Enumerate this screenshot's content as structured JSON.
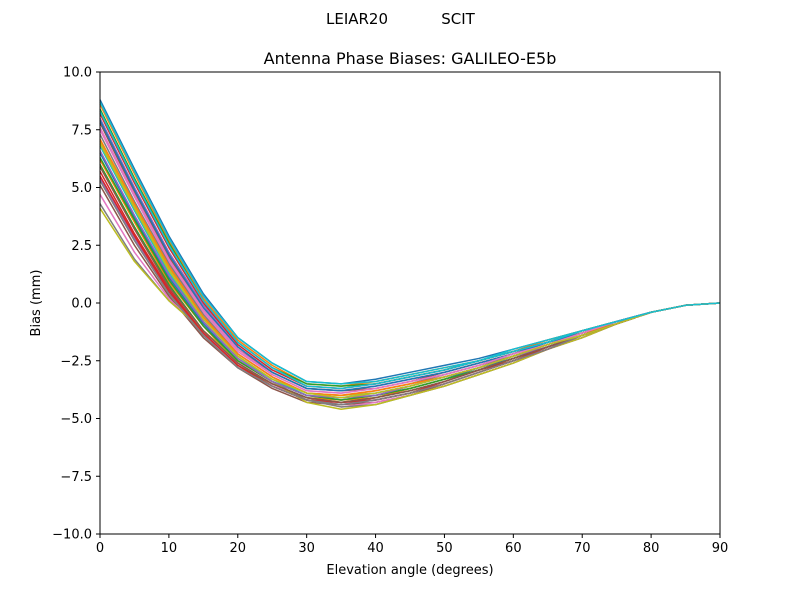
{
  "figure": {
    "suptitle_left": "LEIAR20",
    "suptitle_right": "SCIT"
  },
  "chart_data": {
    "type": "line",
    "title": "Antenna Phase Biases: GALILEO-E5b",
    "xlabel": "Elevation angle (degrees)",
    "ylabel": "Bias (mm)",
    "xlim": [
      0,
      90
    ],
    "ylim": [
      -10,
      10
    ],
    "xticks": [
      0,
      10,
      20,
      30,
      40,
      50,
      60,
      70,
      80,
      90
    ],
    "yticks": [
      -10.0,
      -7.5,
      -5.0,
      -2.5,
      0.0,
      2.5,
      5.0,
      7.5,
      10.0
    ],
    "ytick_labels": [
      "−10.0",
      "−7.5",
      "−5.0",
      "−2.5",
      "0.0",
      "2.5",
      "5.0",
      "7.5",
      "10.0"
    ],
    "xtick_labels": [
      "0",
      "10",
      "20",
      "30",
      "40",
      "50",
      "60",
      "70",
      "80",
      "90"
    ],
    "grid": false,
    "legend": "none",
    "colors": [
      "#1f77b4",
      "#ff7f0e",
      "#2ca02c",
      "#d62728",
      "#9467bd",
      "#8c564b",
      "#e377c2",
      "#7f7f7f",
      "#bcbd22",
      "#17becf"
    ],
    "x": [
      0,
      5,
      10,
      15,
      20,
      25,
      30,
      35,
      40,
      45,
      50,
      55,
      60,
      65,
      70,
      75,
      80,
      85,
      90
    ],
    "series": [
      {
        "values": [
          8.8,
          5.8,
          2.9,
          0.4,
          -1.5,
          -2.6,
          -3.4,
          -3.5,
          -3.3,
          -3.0,
          -2.7,
          -2.4,
          -2.0,
          -1.6,
          -1.2,
          -0.8,
          -0.4,
          -0.1,
          0.0
        ]
      },
      {
        "values": [
          8.6,
          5.6,
          2.7,
          0.2,
          -1.6,
          -2.7,
          -3.5,
          -3.6,
          -3.4,
          -3.1,
          -2.8,
          -2.5,
          -2.1,
          -1.6,
          -1.2,
          -0.8,
          -0.4,
          -0.1,
          0.0
        ]
      },
      {
        "values": [
          8.4,
          5.4,
          2.6,
          0.1,
          -1.7,
          -2.8,
          -3.5,
          -3.6,
          -3.5,
          -3.2,
          -2.9,
          -2.5,
          -2.1,
          -1.7,
          -1.2,
          -0.8,
          -0.4,
          -0.1,
          0.0
        ]
      },
      {
        "values": [
          8.2,
          5.2,
          2.4,
          0.0,
          -1.8,
          -2.9,
          -3.6,
          -3.7,
          -3.5,
          -3.2,
          -2.9,
          -2.5,
          -2.1,
          -1.7,
          -1.2,
          -0.8,
          -0.4,
          -0.1,
          0.0
        ]
      },
      {
        "values": [
          8.0,
          5.0,
          2.2,
          -0.1,
          -1.9,
          -3.0,
          -3.7,
          -3.8,
          -3.6,
          -3.3,
          -3.0,
          -2.6,
          -2.2,
          -1.7,
          -1.3,
          -0.8,
          -0.4,
          -0.1,
          0.0
        ]
      },
      {
        "values": [
          7.8,
          4.8,
          2.0,
          -0.3,
          -2.0,
          -3.0,
          -3.7,
          -3.8,
          -3.7,
          -3.4,
          -3.0,
          -2.6,
          -2.2,
          -1.7,
          -1.3,
          -0.8,
          -0.4,
          -0.1,
          0.0
        ]
      },
      {
        "values": [
          7.5,
          4.6,
          1.8,
          -0.4,
          -2.1,
          -3.1,
          -3.8,
          -3.9,
          -3.7,
          -3.4,
          -3.1,
          -2.7,
          -2.2,
          -1.8,
          -1.3,
          -0.8,
          -0.4,
          -0.1,
          0.0
        ]
      },
      {
        "values": [
          7.3,
          4.4,
          1.7,
          -0.5,
          -2.2,
          -3.2,
          -3.9,
          -4.0,
          -3.8,
          -3.5,
          -3.1,
          -2.7,
          -2.3,
          -1.8,
          -1.3,
          -0.9,
          -0.4,
          -0.1,
          0.0
        ]
      },
      {
        "values": [
          7.0,
          4.2,
          1.5,
          -0.6,
          -2.3,
          -3.3,
          -3.9,
          -4.0,
          -3.9,
          -3.6,
          -3.2,
          -2.8,
          -2.3,
          -1.8,
          -1.3,
          -0.9,
          -0.4,
          -0.1,
          0.0
        ]
      },
      {
        "values": [
          6.8,
          4.0,
          1.3,
          -0.8,
          -2.4,
          -3.3,
          -4.0,
          -4.1,
          -3.9,
          -3.6,
          -3.2,
          -2.8,
          -2.3,
          -1.8,
          -1.4,
          -0.9,
          -0.4,
          -0.1,
          0.0
        ]
      },
      {
        "values": [
          6.5,
          3.7,
          1.1,
          -0.9,
          -2.5,
          -3.4,
          -4.0,
          -4.2,
          -4.0,
          -3.7,
          -3.3,
          -2.8,
          -2.4,
          -1.9,
          -1.4,
          -0.9,
          -0.4,
          -0.1,
          0.0
        ]
      },
      {
        "values": [
          6.2,
          3.5,
          0.9,
          -1.0,
          -2.6,
          -3.5,
          -4.1,
          -4.2,
          -4.1,
          -3.7,
          -3.3,
          -2.9,
          -2.4,
          -1.9,
          -1.4,
          -0.9,
          -0.4,
          -0.1,
          0.0
        ]
      },
      {
        "values": [
          6.0,
          3.3,
          0.8,
          -1.2,
          -2.7,
          -3.5,
          -4.1,
          -4.3,
          -4.1,
          -3.8,
          -3.4,
          -2.9,
          -2.4,
          -1.9,
          -1.4,
          -0.9,
          -0.4,
          -0.1,
          0.0
        ]
      },
      {
        "values": [
          5.7,
          3.0,
          0.6,
          -1.3,
          -2.7,
          -3.6,
          -4.2,
          -4.3,
          -4.2,
          -3.9,
          -3.4,
          -2.9,
          -2.5,
          -1.9,
          -1.4,
          -0.9,
          -0.4,
          -0.1,
          0.0
        ]
      },
      {
        "values": [
          5.4,
          2.8,
          0.5,
          -1.4,
          -2.8,
          -3.6,
          -4.2,
          -4.4,
          -4.2,
          -3.9,
          -3.5,
          -3.0,
          -2.5,
          -2.0,
          -1.4,
          -0.9,
          -0.4,
          -0.1,
          0.0
        ]
      },
      {
        "values": [
          5.1,
          2.5,
          0.3,
          -1.5,
          -2.8,
          -3.7,
          -4.3,
          -4.4,
          -4.3,
          -4.0,
          -3.5,
          -3.0,
          -2.5,
          -2.0,
          -1.5,
          -0.9,
          -0.4,
          -0.1,
          0.0
        ]
      },
      {
        "values": [
          4.7,
          2.2,
          0.2,
          -1.3,
          -2.6,
          -3.5,
          -4.2,
          -4.5,
          -4.3,
          -4.0,
          -3.6,
          -3.1,
          -2.6,
          -2.0,
          -1.5,
          -0.9,
          -0.4,
          -0.1,
          0.0
        ]
      },
      {
        "values": [
          4.3,
          1.9,
          0.1,
          -1.2,
          -2.5,
          -3.4,
          -4.2,
          -4.5,
          -4.4,
          -4.0,
          -3.6,
          -3.1,
          -2.6,
          -2.0,
          -1.5,
          -0.9,
          -0.4,
          -0.1,
          0.0
        ]
      },
      {
        "values": [
          4.1,
          1.8,
          0.1,
          -1.2,
          -2.5,
          -3.4,
          -4.3,
          -4.6,
          -4.4,
          -4.0,
          -3.6,
          -3.1,
          -2.6,
          -2.0,
          -1.5,
          -0.9,
          -0.4,
          -0.1,
          0.0
        ]
      },
      {
        "values": [
          8.7,
          5.7,
          2.8,
          0.3,
          -1.5,
          -2.6,
          -3.4,
          -3.5,
          -3.4,
          -3.1,
          -2.8,
          -2.5,
          -2.0,
          -1.6,
          -1.2,
          -0.8,
          -0.4,
          -0.1,
          0.0
        ]
      },
      {
        "values": [
          7.9,
          4.9,
          2.1,
          -0.2,
          -1.9,
          -3.0,
          -3.7,
          -3.8,
          -3.6,
          -3.3,
          -3.0,
          -2.6,
          -2.2,
          -1.7,
          -1.3,
          -0.8,
          -0.4,
          -0.1,
          0.0
        ]
      },
      {
        "values": [
          7.1,
          4.3,
          1.6,
          -0.6,
          -2.2,
          -3.2,
          -3.9,
          -4.0,
          -3.8,
          -3.5,
          -3.2,
          -2.8,
          -2.3,
          -1.8,
          -1.3,
          -0.9,
          -0.4,
          -0.1,
          0.0
        ]
      },
      {
        "values": [
          6.3,
          3.6,
          1.0,
          -1.0,
          -2.5,
          -3.4,
          -4.0,
          -4.2,
          -4.0,
          -3.7,
          -3.3,
          -2.9,
          -2.4,
          -1.9,
          -1.4,
          -0.9,
          -0.4,
          -0.1,
          0.0
        ]
      },
      {
        "values": [
          5.5,
          2.9,
          0.5,
          -1.3,
          -2.7,
          -3.6,
          -4.2,
          -4.3,
          -4.2,
          -3.9,
          -3.5,
          -3.0,
          -2.5,
          -2.0,
          -1.4,
          -0.9,
          -0.4,
          -0.1,
          0.0
        ]
      },
      {
        "values": [
          6.6,
          3.8,
          1.2,
          -0.8,
          -2.4,
          -3.4,
          -4.0,
          -4.1,
          -4.0,
          -3.6,
          -3.2,
          -2.8,
          -2.3,
          -1.9,
          -1.4,
          -0.9,
          -0.4,
          -0.1,
          0.0
        ]
      },
      {
        "values": [
          5.9,
          3.2,
          0.7,
          -1.2,
          -2.6,
          -3.5,
          -4.1,
          -4.3,
          -4.1,
          -3.8,
          -3.4,
          -2.9,
          -2.4,
          -1.9,
          -1.4,
          -0.9,
          -0.4,
          -0.1,
          0.0
        ]
      },
      {
        "values": [
          7.6,
          4.7,
          1.9,
          -0.3,
          -2.0,
          -3.1,
          -3.8,
          -3.9,
          -3.7,
          -3.4,
          -3.1,
          -2.7,
          -2.2,
          -1.8,
          -1.3,
          -0.8,
          -0.4,
          -0.1,
          0.0
        ]
      },
      {
        "values": [
          5.3,
          2.7,
          0.4,
          -1.4,
          -2.8,
          -3.6,
          -4.2,
          -4.4,
          -4.2,
          -3.9,
          -3.5,
          -3.0,
          -2.5,
          -2.0,
          -1.4,
          -0.9,
          -0.4,
          -0.1,
          0.0
        ]
      },
      {
        "values": [
          6.9,
          4.1,
          1.4,
          -0.7,
          -2.3,
          -3.3,
          -3.9,
          -4.1,
          -3.9,
          -3.6,
          -3.2,
          -2.8,
          -2.3,
          -1.8,
          -1.4,
          -0.9,
          -0.4,
          -0.1,
          0.0
        ]
      },
      {
        "values": [
          8.3,
          5.3,
          2.5,
          0.1,
          -1.7,
          -2.8,
          -3.6,
          -3.7,
          -3.5,
          -3.2,
          -2.9,
          -2.5,
          -2.1,
          -1.7,
          -1.2,
          -0.8,
          -0.4,
          -0.1,
          0.0
        ]
      }
    ]
  }
}
